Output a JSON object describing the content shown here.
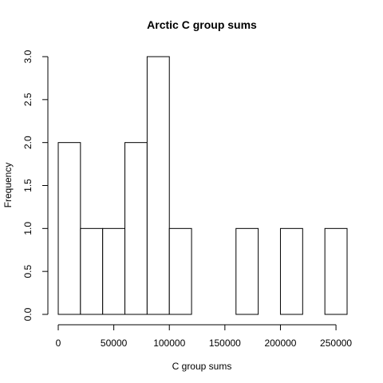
{
  "chart_data": {
    "type": "bar",
    "title": "Arctic C group sums",
    "xlabel": "C group sums",
    "ylabel": "Frequency",
    "bins": [
      {
        "from": 0,
        "to": 20000,
        "count": 2
      },
      {
        "from": 20000,
        "to": 40000,
        "count": 1
      },
      {
        "from": 40000,
        "to": 60000,
        "count": 1
      },
      {
        "from": 60000,
        "to": 80000,
        "count": 2
      },
      {
        "from": 80000,
        "to": 100000,
        "count": 3
      },
      {
        "from": 100000,
        "to": 120000,
        "count": 1
      },
      {
        "from": 120000,
        "to": 140000,
        "count": 0
      },
      {
        "from": 140000,
        "to": 160000,
        "count": 0
      },
      {
        "from": 160000,
        "to": 180000,
        "count": 1
      },
      {
        "from": 180000,
        "to": 200000,
        "count": 0
      },
      {
        "from": 200000,
        "to": 220000,
        "count": 1
      },
      {
        "from": 220000,
        "to": 240000,
        "count": 0
      },
      {
        "from": 240000,
        "to": 260000,
        "count": 1
      }
    ],
    "xlim": [
      0,
      260000
    ],
    "ylim": [
      0,
      3
    ],
    "x_ticks": [
      0,
      50000,
      100000,
      150000,
      200000,
      250000
    ],
    "x_tick_labels": [
      "0",
      "50000",
      "100000",
      "150000",
      "200000",
      "250000"
    ],
    "y_ticks": [
      0,
      0.5,
      1,
      1.5,
      2,
      2.5,
      3
    ],
    "y_tick_labels": [
      "0.0",
      "0.5",
      "1.0",
      "1.5",
      "2.0",
      "2.5",
      "3.0"
    ],
    "grid": false,
    "bar_fill": "#ffffff",
    "bar_stroke": "#000000"
  }
}
